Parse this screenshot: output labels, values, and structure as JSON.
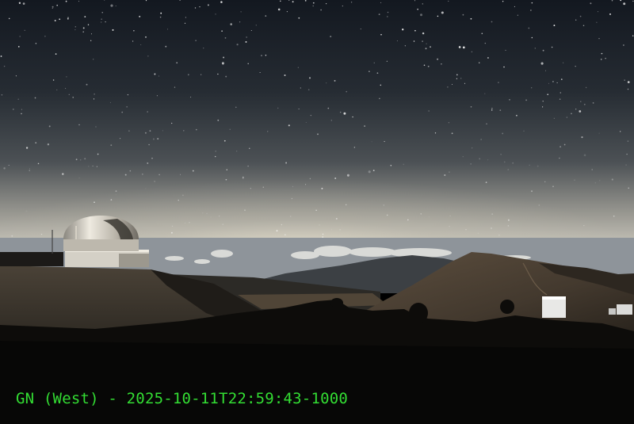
{
  "caption": {
    "text": "GN (West) - 2025-10-11T22:59:43-1000"
  },
  "colors": {
    "caption": "#33dd33",
    "sky_top": "#151a1f",
    "sky_mid": "#3a4046",
    "horizon_glow": "#d8d6cc",
    "cloud_sea": "#9aa0a4",
    "ridge_dark": "#2a2722",
    "ground_brown": "#4a4034",
    "dome_silver": "#c8c4ba",
    "foreground": "#0c0b09"
  },
  "icons": {
    "dome": "observatory-dome-icon",
    "hut": "white-hut-icon"
  }
}
